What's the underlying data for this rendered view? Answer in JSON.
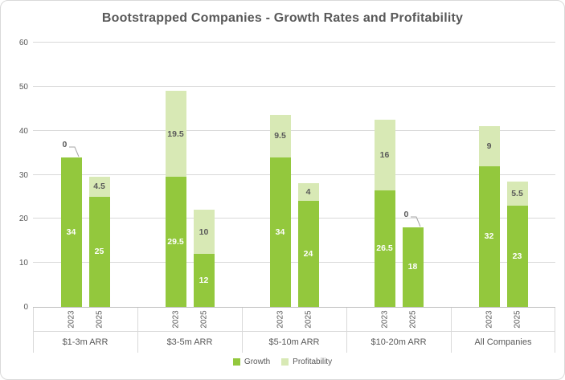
{
  "colors": {
    "title_text": "#595959",
    "axis_text": "#595959",
    "gridline": "#D9D9D9",
    "axis_line": "#BFBFBF",
    "label_on_dark": "#FFFFFF",
    "label_on_light": "#595959",
    "leader_line": "#A6A6A6",
    "border": "#D9D9D9"
  },
  "chart_data": {
    "type": "bar",
    "stacked": true,
    "title": "Bootstrapped Companies - Growth Rates and Profitability",
    "ylim": [
      0,
      60
    ],
    "yticks": [
      0,
      10,
      20,
      30,
      40,
      50,
      60
    ],
    "grid": true,
    "legend_position": "bottom",
    "series": [
      {
        "name": "Growth",
        "color": "#93C83D"
      },
      {
        "name": "Profitability",
        "color": "#D8E9B5"
      }
    ],
    "groups": [
      {
        "category": "$1-3m ARR",
        "bars": [
          {
            "label": "2023",
            "values": [
              34,
              0
            ]
          },
          {
            "label": "2025",
            "values": [
              25,
              4.5
            ]
          }
        ]
      },
      {
        "category": "$3-5m ARR",
        "bars": [
          {
            "label": "2023",
            "values": [
              29.5,
              19.5
            ]
          },
          {
            "label": "2025",
            "values": [
              12,
              10
            ]
          }
        ]
      },
      {
        "category": "$5-10m ARR",
        "bars": [
          {
            "label": "2023",
            "values": [
              34,
              9.5
            ]
          },
          {
            "label": "2025",
            "values": [
              24,
              4
            ]
          }
        ]
      },
      {
        "category": "$10-20m ARR",
        "bars": [
          {
            "label": "2023",
            "values": [
              26.5,
              16
            ]
          },
          {
            "label": "2025",
            "values": [
              18,
              0
            ]
          }
        ]
      },
      {
        "category": "All Companies",
        "bars": [
          {
            "label": "2023",
            "values": [
              32,
              9
            ]
          },
          {
            "label": "2025",
            "values": [
              23,
              5.5
            ]
          }
        ]
      }
    ]
  }
}
